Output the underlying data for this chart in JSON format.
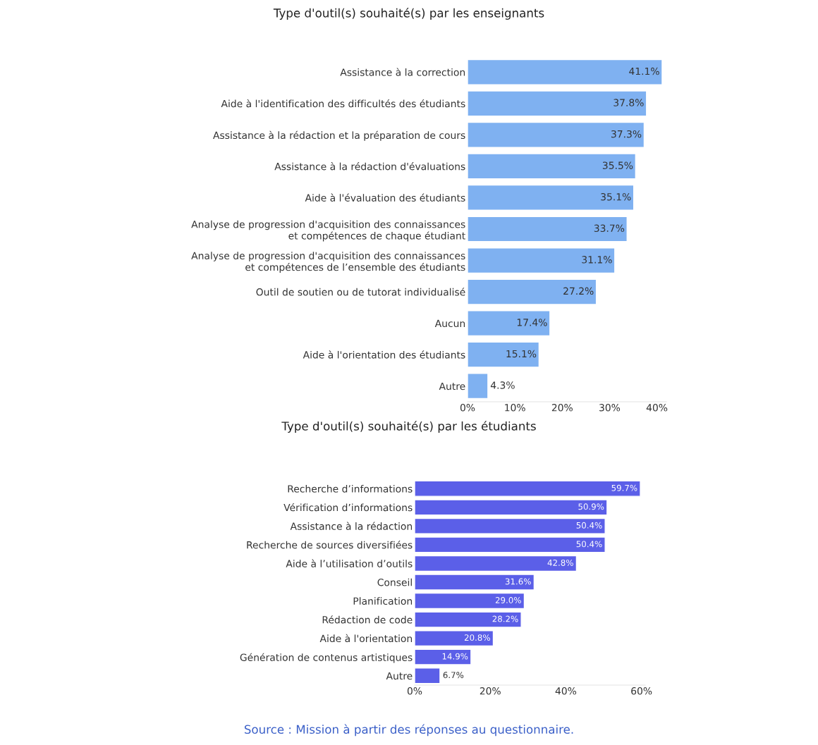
{
  "chart_data": [
    {
      "type": "bar",
      "orientation": "horizontal",
      "title": "Type d'outil(s) souhaité(s) par les enseignants",
      "categories": [
        "Assistance à la correction",
        "Aide à l'identification des difficultés des étudiants",
        "Assistance à la rédaction et la préparation de cours",
        "Assistance à la rédaction d'évaluations",
        "Aide à l'évaluation des étudiants",
        "Analyse de progression d'acquisition des connaissances\net compétences de chaque étudiant",
        "Analyse de progression d'acquisition des connaissances\net compétences de l’ensemble des étudiants",
        "Outil de soutien ou de tutorat individualisé",
        "Aucun",
        "Aide à l'orientation des étudiants",
        "Autre"
      ],
      "values": [
        41.1,
        37.8,
        37.3,
        35.5,
        35.1,
        33.7,
        31.1,
        27.2,
        17.4,
        15.1,
        4.3
      ],
      "value_labels": [
        "41.1%",
        "37.8%",
        "37.3%",
        "35.5%",
        "35.1%",
        "33.7%",
        "31.1%",
        "27.2%",
        "17.4%",
        "15.1%",
        "4.3%"
      ],
      "color": "#7fb1f1",
      "xlim": [
        0,
        42
      ],
      "xticks": [
        {
          "value": 0,
          "label": "0%"
        },
        {
          "value": 10,
          "label": "10%"
        },
        {
          "value": 20,
          "label": "20%"
        },
        {
          "value": 30,
          "label": "30%"
        },
        {
          "value": 40,
          "label": "40%"
        }
      ],
      "grid": false
    },
    {
      "type": "bar",
      "orientation": "horizontal",
      "title": "Type d'outil(s) souhaité(s) par les étudiants",
      "categories": [
        "Recherche d’informations",
        "Vérification d’informations",
        "Assistance à la rédaction",
        "Recherche de sources diversifiées",
        "Aide à l’utilisation d’outils",
        "Conseil",
        "Planification",
        "Rédaction de code",
        "Aide à l'orientation",
        "Génération de contenus artistiques",
        "Autre"
      ],
      "values": [
        59.7,
        50.9,
        50.4,
        50.4,
        42.8,
        31.6,
        29.0,
        28.2,
        20.8,
        14.9,
        6.7
      ],
      "value_labels": [
        "59.7%",
        "50.9%",
        "50.4%",
        "50.4%",
        "42.8%",
        "31.6%",
        "29.0%",
        "28.2%",
        "20.8%",
        "14.9%",
        "6.7%"
      ],
      "color": "#5b5fe8",
      "xlim": [
        0,
        61
      ],
      "xticks": [
        {
          "value": 0,
          "label": "0%"
        },
        {
          "value": 20,
          "label": "20%"
        },
        {
          "value": 40,
          "label": "40%"
        },
        {
          "value": 60,
          "label": "60%"
        }
      ],
      "grid": false,
      "annotations": [
        "Source : Mission à partir des réponses au questionnaire."
      ]
    }
  ]
}
